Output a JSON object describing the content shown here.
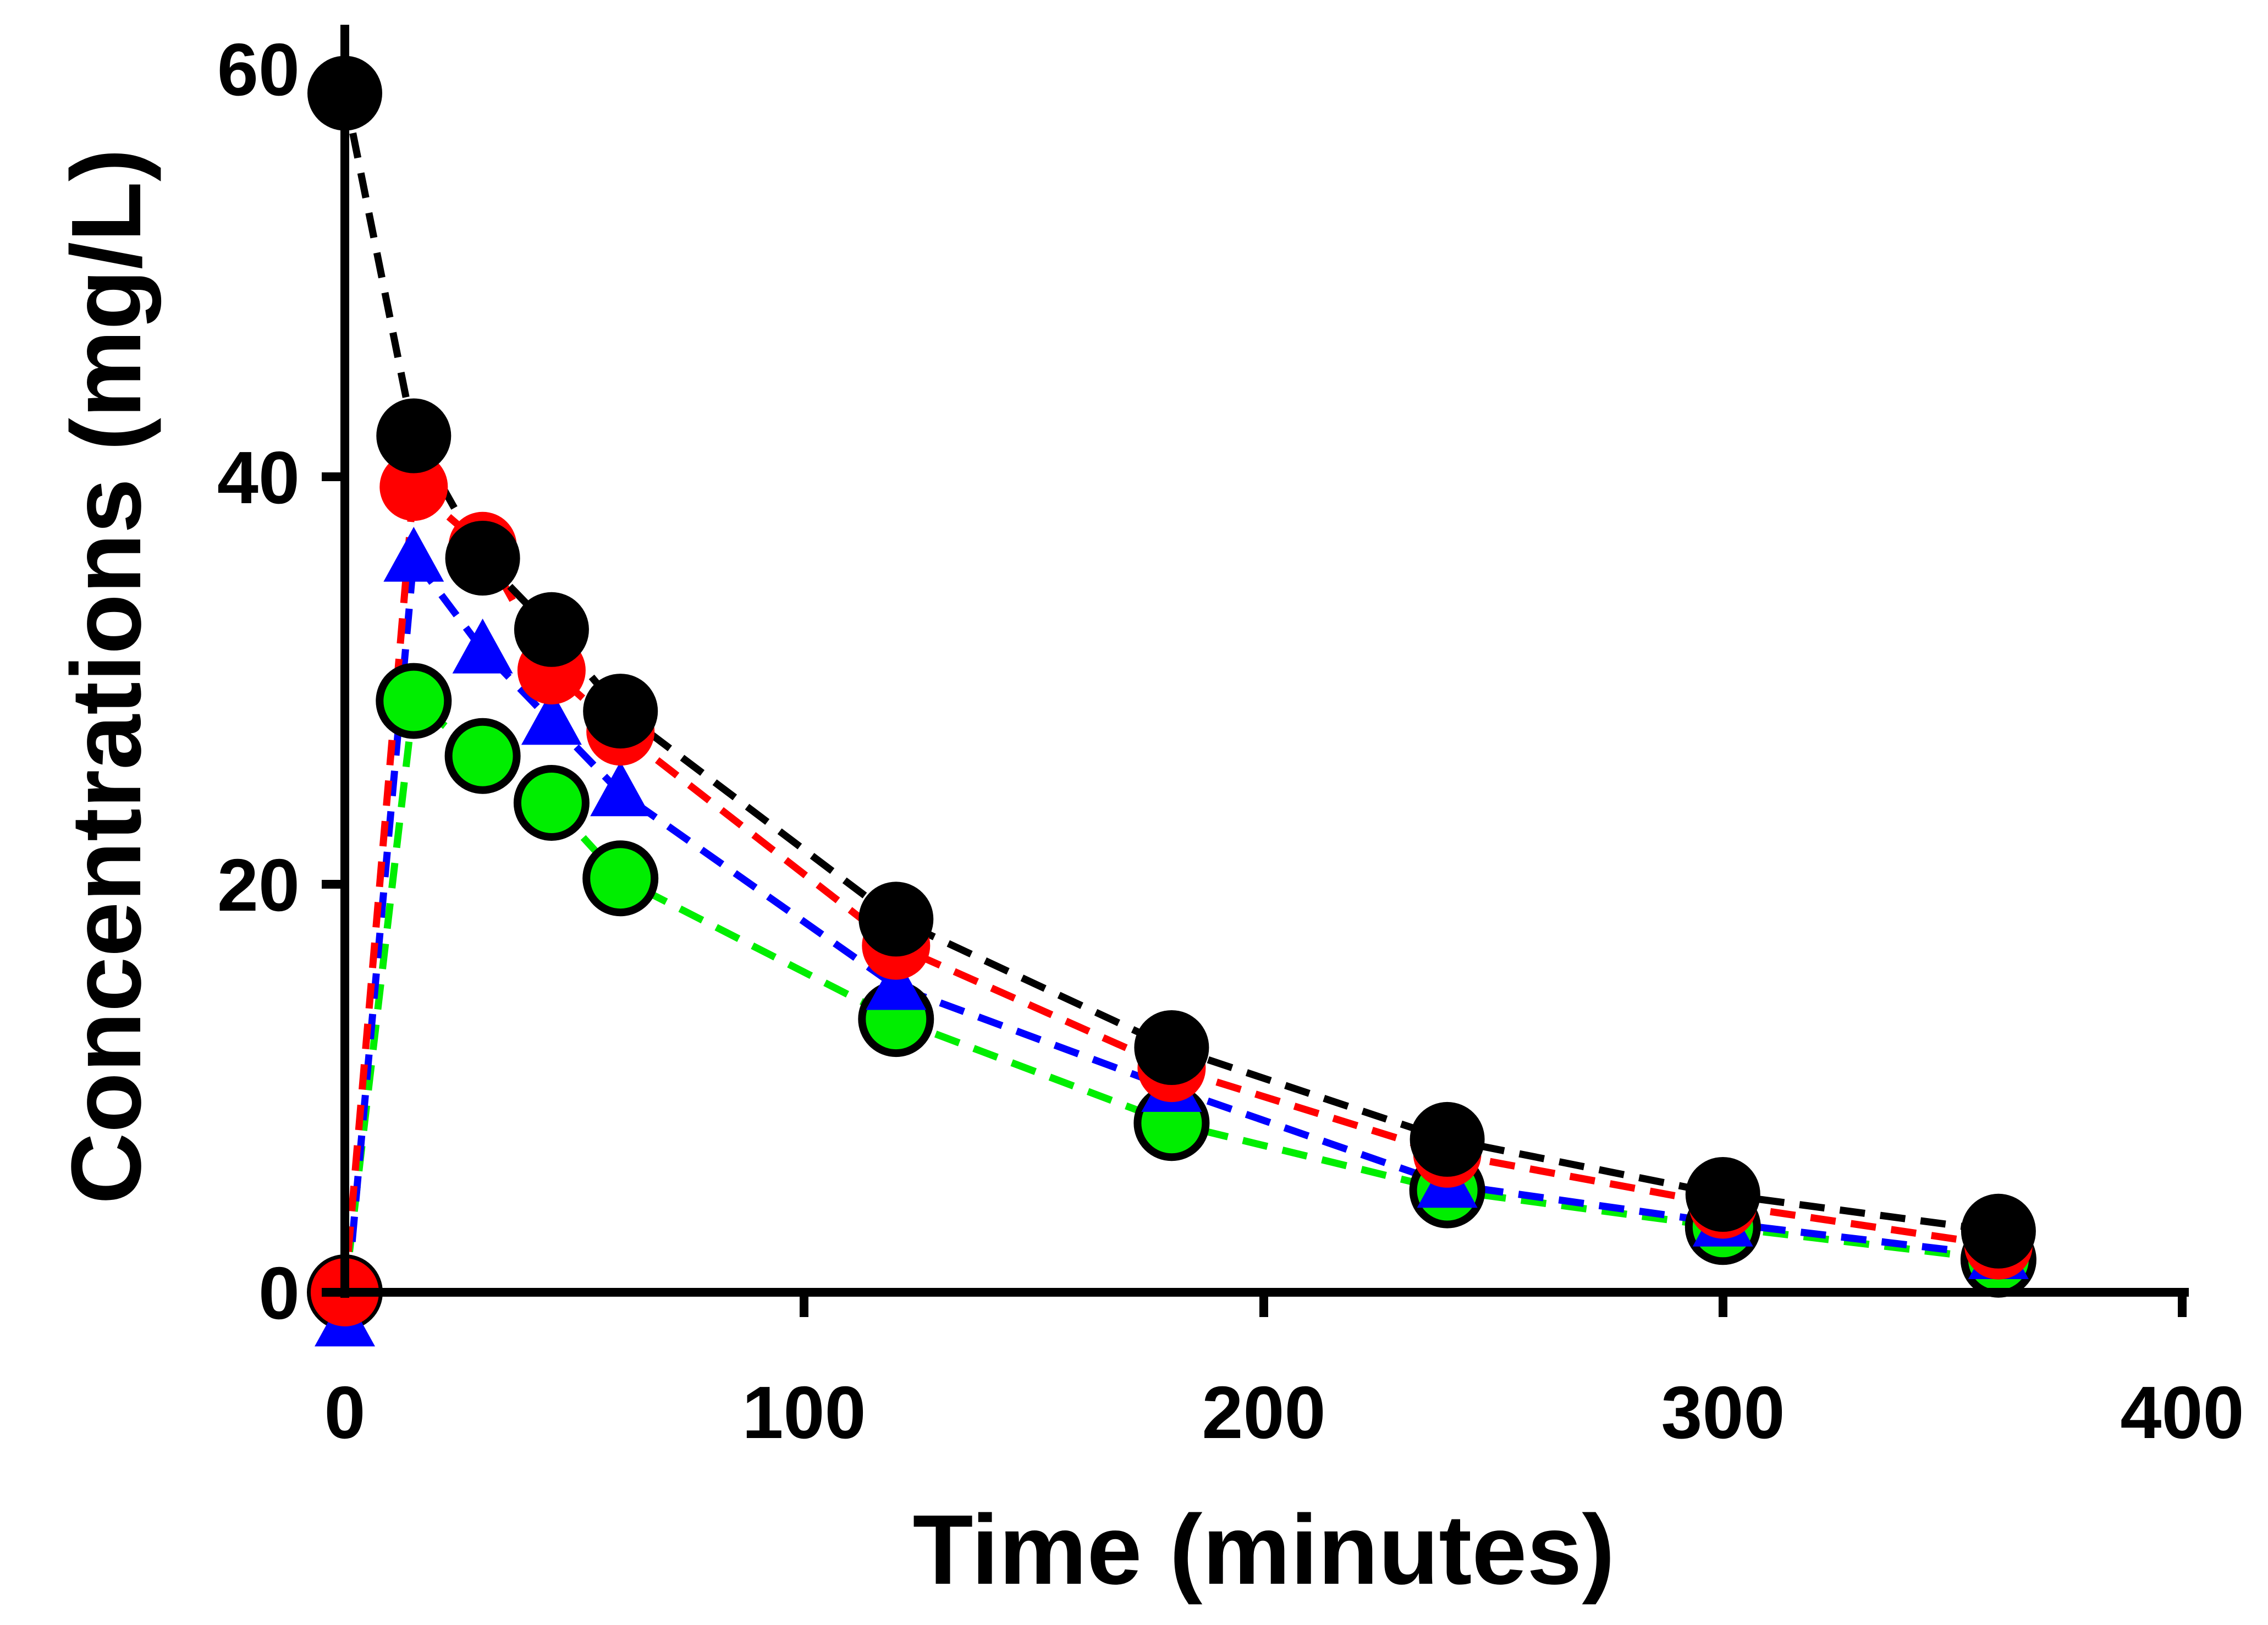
{
  "chart_data": {
    "type": "scatter",
    "title": "",
    "xlabel": "Time (minutes)",
    "ylabel": "Concentrations (mg/L)",
    "xlim": [
      0,
      400
    ],
    "ylim": [
      0,
      60
    ],
    "x_ticks": [
      "0",
      "100",
      "200",
      "300",
      "400"
    ],
    "y_ticks": [
      "0",
      "20",
      "40",
      "60"
    ],
    "grid": false,
    "legend": "none",
    "x": [
      0,
      15,
      30,
      45,
      60,
      120,
      180,
      240,
      300,
      360
    ],
    "series": [
      {
        "name": "green-circles",
        "marker": "circle",
        "color": "#00ee00",
        "values": [
          0,
          29,
          26.3,
          24,
          20.3,
          13.4,
          8.3,
          5,
          3.2,
          1.6
        ]
      },
      {
        "name": "blue-triangles",
        "marker": "triangle",
        "color": "#0000ff",
        "values": [
          -1.5,
          36,
          31.5,
          28,
          24.5,
          15,
          10,
          5.3,
          3.4,
          1.8
        ]
      },
      {
        "name": "red-circles",
        "marker": "circle",
        "color": "#ff0000",
        "values": [
          0,
          39.5,
          36.6,
          30.5,
          27.5,
          17,
          11,
          6.8,
          4.3,
          2.3
        ]
      },
      {
        "name": "black-circles",
        "marker": "circle",
        "color": "#000000",
        "values": [
          58.8,
          42,
          36,
          32.5,
          28.5,
          18.3,
          12,
          7.5,
          4.8,
          3
        ]
      }
    ]
  }
}
